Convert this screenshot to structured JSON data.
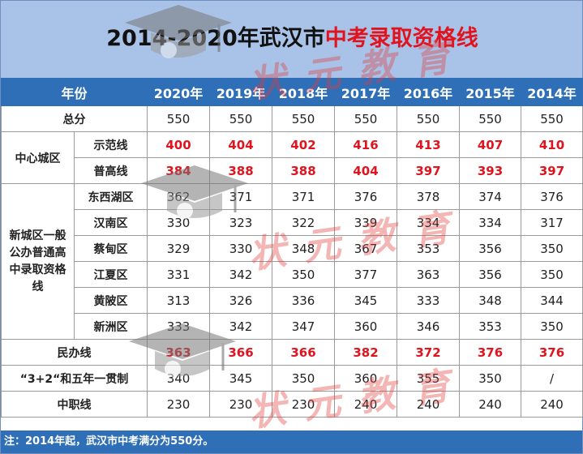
{
  "title": {
    "prefix": "2014-2020年武汉市",
    "highlight": "中考录取资格线"
  },
  "columns": [
    "年份",
    "2020年",
    "2019年",
    "2018年",
    "2017年",
    "2016年",
    "2015年",
    "2014年"
  ],
  "rows": {
    "total": {
      "label": "总分",
      "values": [
        "550",
        "550",
        "550",
        "550",
        "550",
        "550",
        "550"
      ]
    },
    "center_group": "中心城区",
    "model": {
      "label": "示范线",
      "values": [
        "400",
        "404",
        "402",
        "416",
        "413",
        "407",
        "410"
      ]
    },
    "general": {
      "label": "普高线",
      "values": [
        "384",
        "388",
        "388",
        "404",
        "397",
        "393",
        "397"
      ]
    },
    "new_group": "新城区一般公办普通高中录取资格线",
    "dongxihu": {
      "label": "东西湖区",
      "values": [
        "362",
        "371",
        "371",
        "376",
        "378",
        "374",
        "376"
      ]
    },
    "hannan": {
      "label": "汉南区",
      "values": [
        "330",
        "323",
        "322",
        "339",
        "334",
        "334",
        "317"
      ]
    },
    "caidian": {
      "label": "蔡甸区",
      "values": [
        "329",
        "330",
        "348",
        "367",
        "353",
        "356",
        "350"
      ]
    },
    "jiangxia": {
      "label": "江夏区",
      "values": [
        "331",
        "342",
        "350",
        "377",
        "363",
        "356",
        "350"
      ]
    },
    "huangpi": {
      "label": "黄陂区",
      "values": [
        "313",
        "326",
        "336",
        "345",
        "333",
        "348",
        "344"
      ]
    },
    "xinzhou": {
      "label": "新洲区",
      "values": [
        "333",
        "342",
        "347",
        "360",
        "346",
        "353",
        "350"
      ]
    },
    "private": {
      "label": "民办线",
      "values": [
        "363",
        "366",
        "366",
        "382",
        "372",
        "376",
        "376"
      ]
    },
    "three_two": {
      "label": "“3+2“和五年一贯制",
      "values": [
        "340",
        "345",
        "350",
        "360",
        "355",
        "350",
        "/"
      ]
    },
    "vocational": {
      "label": "中职线",
      "values": [
        "230",
        "230",
        "230",
        "240",
        "240",
        "240",
        "240"
      ]
    }
  },
  "note": "注：2014年起，武汉市中考满分为550分。",
  "watermark": "状元教育",
  "colors": {
    "header_blue": "#2e6fb8",
    "title_band": "#a9c3e8",
    "highlight_red": "#e0141e"
  }
}
